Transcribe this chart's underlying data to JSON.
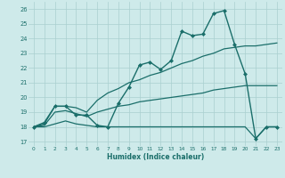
{
  "xlabel": "Humidex (Indice chaleur)",
  "bg_color": "#ceeaea",
  "grid_color": "#aacfcf",
  "line_color": "#1a6e6a",
  "x_ticks": [
    0,
    1,
    2,
    3,
    4,
    5,
    6,
    7,
    8,
    9,
    10,
    11,
    12,
    13,
    14,
    15,
    16,
    17,
    18,
    19,
    20,
    21,
    22,
    23
  ],
  "y_ticks": [
    17,
    18,
    19,
    20,
    21,
    22,
    23,
    24,
    25,
    26
  ],
  "xlim": [
    -0.5,
    23.5
  ],
  "ylim": [
    16.7,
    26.5
  ],
  "series": [
    {
      "x": [
        0,
        1,
        2,
        3,
        4,
        5,
        6,
        7,
        8,
        9,
        10,
        11,
        12,
        13,
        14,
        15,
        16,
        17,
        18,
        19,
        20,
        21,
        22,
        23
      ],
      "y": [
        18.0,
        18.3,
        19.4,
        19.4,
        18.8,
        18.8,
        18.1,
        18.0,
        19.6,
        20.7,
        22.2,
        22.4,
        21.9,
        22.5,
        24.5,
        24.2,
        24.3,
        25.7,
        25.9,
        23.6,
        21.6,
        17.2,
        18.0,
        18.0
      ],
      "marker": "D",
      "markersize": 2.0,
      "linewidth": 1.0,
      "has_marker": true
    },
    {
      "x": [
        0,
        1,
        2,
        3,
        4,
        5,
        6,
        7,
        8,
        9,
        10,
        11,
        12,
        13,
        14,
        15,
        16,
        17,
        18,
        19,
        20,
        21,
        22,
        23
      ],
      "y": [
        18.0,
        18.2,
        19.4,
        19.4,
        19.3,
        19.0,
        19.8,
        20.3,
        20.6,
        21.0,
        21.2,
        21.5,
        21.7,
        22.0,
        22.3,
        22.5,
        22.8,
        23.0,
        23.3,
        23.4,
        23.5,
        23.5,
        23.6,
        23.7
      ],
      "marker": null,
      "markersize": 0,
      "linewidth": 0.9,
      "has_marker": false
    },
    {
      "x": [
        0,
        1,
        2,
        3,
        4,
        5,
        6,
        7,
        8,
        9,
        10,
        11,
        12,
        13,
        14,
        15,
        16,
        17,
        18,
        19,
        20,
        21,
        22,
        23
      ],
      "y": [
        18.0,
        18.1,
        19.0,
        19.1,
        18.9,
        18.7,
        19.0,
        19.2,
        19.4,
        19.5,
        19.7,
        19.8,
        19.9,
        20.0,
        20.1,
        20.2,
        20.3,
        20.5,
        20.6,
        20.7,
        20.8,
        20.8,
        20.8,
        20.8
      ],
      "marker": null,
      "markersize": 0,
      "linewidth": 0.9,
      "has_marker": false
    },
    {
      "x": [
        0,
        1,
        2,
        3,
        4,
        5,
        6,
        7,
        8,
        9,
        10,
        11,
        12,
        13,
        14,
        15,
        16,
        17,
        18,
        19,
        20,
        21,
        22,
        23
      ],
      "y": [
        18.0,
        18.0,
        18.2,
        18.4,
        18.2,
        18.1,
        18.0,
        18.0,
        18.0,
        18.0,
        18.0,
        18.0,
        18.0,
        18.0,
        18.0,
        18.0,
        18.0,
        18.0,
        18.0,
        18.0,
        18.0,
        17.2,
        18.0,
        18.0
      ],
      "marker": null,
      "markersize": 0,
      "linewidth": 0.9,
      "has_marker": false
    }
  ]
}
